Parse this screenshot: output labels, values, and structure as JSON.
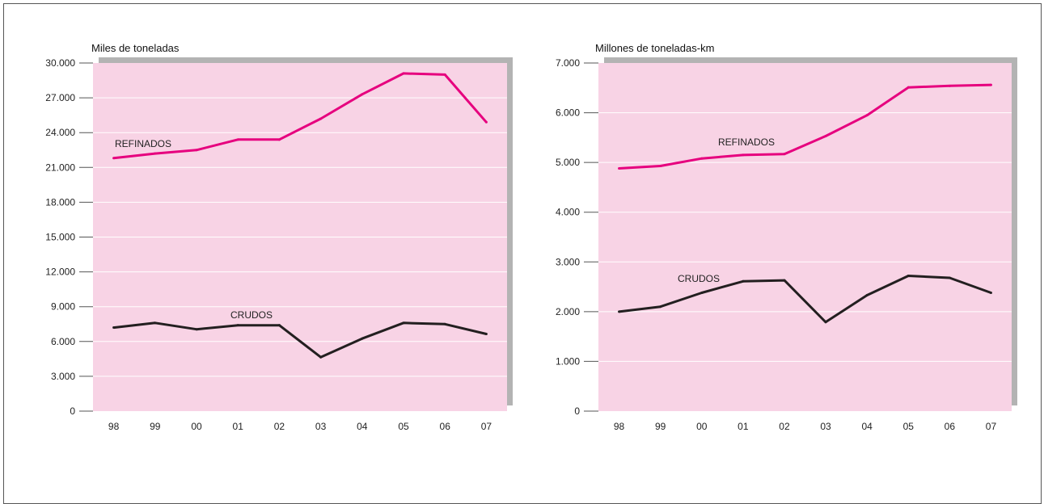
{
  "chart_data": [
    {
      "type": "line",
      "title": "",
      "ylabel": "Miles de toneladas",
      "xlabel": "",
      "categories": [
        "98",
        "99",
        "00",
        "01",
        "02",
        "03",
        "04",
        "05",
        "06",
        "07"
      ],
      "yticks": [
        "0",
        "3.000",
        "6.000",
        "9.000",
        "12.000",
        "15.000",
        "18.000",
        "21.000",
        "24.000",
        "27.000",
        "30.000"
      ],
      "ylim": [
        0,
        30000
      ],
      "grid": true,
      "series": [
        {
          "name": "REFINADOS",
          "color": "#e6007e",
          "values": [
            21800,
            22200,
            22500,
            23400,
            23400,
            25200,
            27300,
            29100,
            29000,
            24900
          ]
        },
        {
          "name": "CRUDOS",
          "color": "#231f20",
          "values": [
            7200,
            7600,
            7050,
            7400,
            7400,
            4650,
            6250,
            7600,
            7500,
            6650
          ]
        }
      ]
    },
    {
      "type": "line",
      "title": "",
      "ylabel": "Millones de toneladas-km",
      "xlabel": "",
      "categories": [
        "98",
        "99",
        "00",
        "01",
        "02",
        "03",
        "04",
        "05",
        "06",
        "07"
      ],
      "yticks": [
        "0",
        "1.000",
        "2.000",
        "3.000",
        "4.000",
        "5.000",
        "6.000",
        "7.000"
      ],
      "ylim": [
        0,
        7000
      ],
      "grid": true,
      "series": [
        {
          "name": "REFINADOS",
          "color": "#e6007e",
          "values": [
            4880,
            4930,
            5080,
            5150,
            5170,
            5530,
            5950,
            6510,
            6540,
            6560
          ]
        },
        {
          "name": "CRUDOS",
          "color": "#231f20",
          "values": [
            2000,
            2100,
            2380,
            2610,
            2630,
            1790,
            2330,
            2720,
            2680,
            2380
          ]
        }
      ]
    }
  ]
}
